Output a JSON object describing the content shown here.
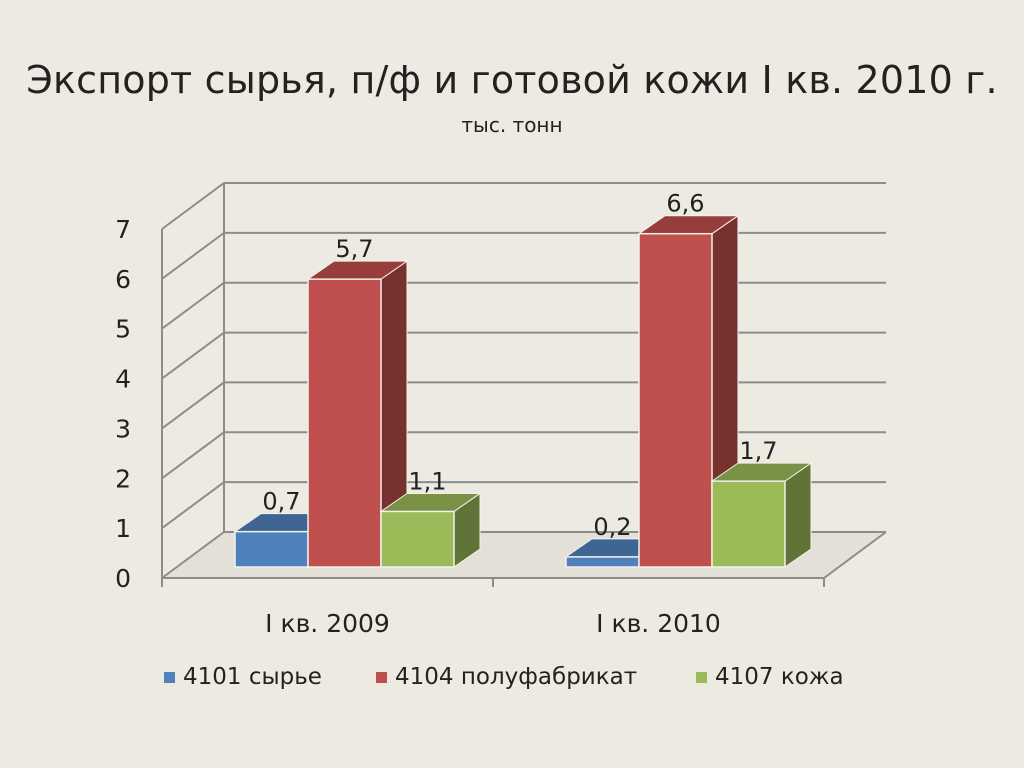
{
  "chart_data": {
    "type": "bar",
    "title": "Экспорт сырья, п/ф и готовой кожи  I кв. 2010 г.",
    "subtitle": "тыс. тонн",
    "categories": [
      "I кв. 2009",
      "I кв. 2010"
    ],
    "series": [
      {
        "name": "4101 сырье",
        "values": [
          0.7,
          0.2
        ],
        "labels": [
          "0,7",
          "0,2"
        ],
        "color": "#4F81BD"
      },
      {
        "name": "4104 полуфабрикат",
        "values": [
          5.7,
          6.6
        ],
        "labels": [
          "5,7",
          "6,6"
        ],
        "color": "#C0504D"
      },
      {
        "name": "4107 кожа",
        "values": [
          1.1,
          1.7
        ],
        "labels": [
          "1,1",
          "1,7"
        ],
        "color": "#9BBB59"
      }
    ],
    "ylim": [
      0,
      7
    ],
    "yticks": [
      "0",
      "1",
      "2",
      "3",
      "4",
      "5",
      "6",
      "7"
    ],
    "grid": true,
    "style": "3d-clustered-column",
    "legend_position": "bottom"
  }
}
